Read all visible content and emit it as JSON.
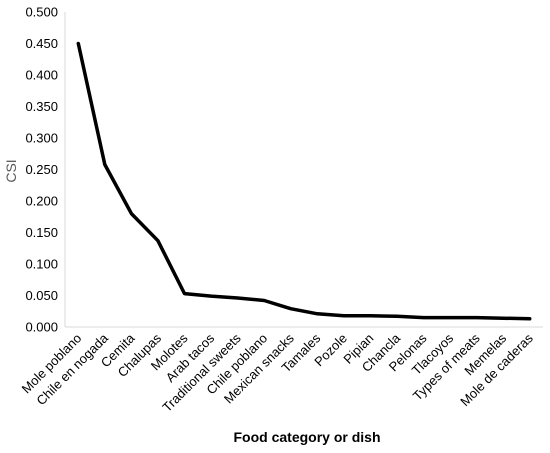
{
  "chart_data": {
    "type": "line",
    "categories": [
      "Mole poblano",
      "Chile en nogada",
      "Cemita",
      "Chalupas",
      "Molotes",
      "Arab tacos",
      "Traditional sweets",
      "Chile poblano",
      "Mexican snacks",
      "Tamales",
      "Pozole",
      "Pipian",
      "Chancla",
      "Pelonas",
      "Tlacoyos",
      "Types of meats",
      "Memelas",
      "Mole de caderas"
    ],
    "series": [
      {
        "values": [
          0.45,
          0.258,
          0.18,
          0.137,
          0.053,
          0.049,
          0.046,
          0.042,
          0.029,
          0.021,
          0.018,
          0.018,
          0.017,
          0.015,
          0.015,
          0.015,
          0.014,
          0.013
        ]
      }
    ],
    "xlabel": "Food category or dish",
    "ylabel": "CSI",
    "ylim": [
      0,
      0.5
    ],
    "yticks": [
      "0.000",
      "0.050",
      "0.100",
      "0.150",
      "0.200",
      "0.250",
      "0.300",
      "0.350",
      "0.400",
      "0.450",
      "0.500"
    ],
    "grid": false,
    "legend": "none",
    "line_color": "#000000"
  }
}
